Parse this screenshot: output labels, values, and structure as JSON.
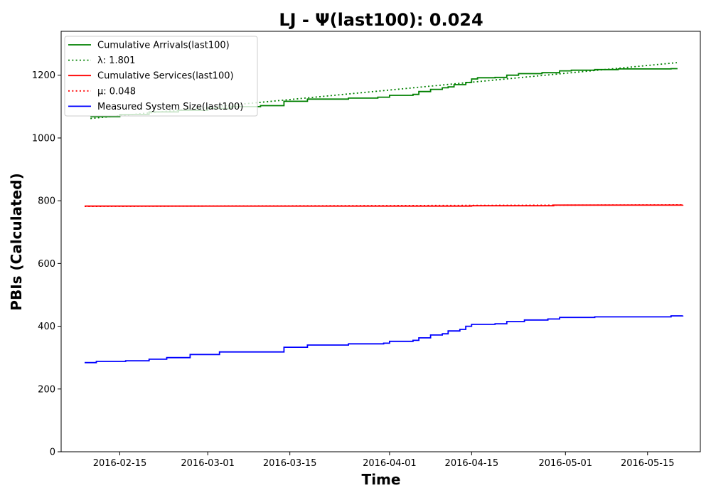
{
  "chart_data": {
    "type": "line",
    "title": "LJ -  Ψ(last100): 0.024",
    "xlabel": "Time",
    "ylabel": "PBIs (Calculated)",
    "xlim": [
      "2016-02-05",
      "2016-05-24"
    ],
    "ylim": [
      0,
      1340
    ],
    "xticks": [
      "2016-02-15",
      "2016-03-01",
      "2016-03-15",
      "2016-04-01",
      "2016-04-15",
      "2016-05-01",
      "2016-05-15"
    ],
    "yticks": [
      0,
      200,
      400,
      600,
      800,
      1000,
      1200
    ],
    "grid": false,
    "legend_position": "top-left",
    "series": [
      {
        "name": "Cumulative Arrivals(last100)",
        "color": "#008000",
        "style": "solid",
        "points": [
          [
            "2016-02-10",
            1068
          ],
          [
            "2016-02-15",
            1075
          ],
          [
            "2016-02-20",
            1083
          ],
          [
            "2016-02-25",
            1088
          ],
          [
            "2016-03-01",
            1094
          ],
          [
            "2016-03-05",
            1100
          ],
          [
            "2016-03-10",
            1103
          ],
          [
            "2016-03-14",
            1106
          ],
          [
            "2016-03-14",
            1117
          ],
          [
            "2016-03-18",
            1124
          ],
          [
            "2016-03-25",
            1127
          ],
          [
            "2016-03-30",
            1130
          ],
          [
            "2016-04-01",
            1136
          ],
          [
            "2016-04-05",
            1139
          ],
          [
            "2016-04-06",
            1148
          ],
          [
            "2016-04-08",
            1155
          ],
          [
            "2016-04-10",
            1160
          ],
          [
            "2016-04-11",
            1163
          ],
          [
            "2016-04-12",
            1170
          ],
          [
            "2016-04-14",
            1177
          ],
          [
            "2016-04-15",
            1188
          ],
          [
            "2016-04-16",
            1192
          ],
          [
            "2016-04-19",
            1193
          ],
          [
            "2016-04-21",
            1200
          ],
          [
            "2016-04-23",
            1205
          ],
          [
            "2016-04-27",
            1208
          ],
          [
            "2016-04-30",
            1214
          ],
          [
            "2016-05-02",
            1216
          ],
          [
            "2016-05-06",
            1218
          ],
          [
            "2016-05-10",
            1220
          ],
          [
            "2016-05-19",
            1221
          ],
          [
            "2016-05-20",
            1223
          ]
        ]
      },
      {
        "name": "λ: 1.801",
        "color": "#008000",
        "style": "dotted",
        "points": [
          [
            "2016-02-10",
            1062
          ],
          [
            "2016-05-20",
            1240
          ]
        ]
      },
      {
        "name": "Cumulative Services(last100)",
        "color": "#ff0000",
        "style": "solid",
        "points": [
          [
            "2016-02-09",
            783
          ],
          [
            "2016-03-15",
            783
          ],
          [
            "2016-04-15",
            784
          ],
          [
            "2016-04-29",
            786
          ],
          [
            "2016-05-21",
            787
          ]
        ]
      },
      {
        "name": "μ: 0.048",
        "color": "#ff0000",
        "style": "dotted",
        "points": [
          [
            "2016-02-09",
            782
          ],
          [
            "2016-05-21",
            787
          ]
        ]
      },
      {
        "name": "Measured System Size(last100)",
        "color": "#0000ff",
        "style": "solid",
        "points": [
          [
            "2016-02-09",
            284
          ],
          [
            "2016-02-11",
            288
          ],
          [
            "2016-02-16",
            290
          ],
          [
            "2016-02-20",
            295
          ],
          [
            "2016-02-23",
            300
          ],
          [
            "2016-02-27",
            310
          ],
          [
            "2016-03-03",
            318
          ],
          [
            "2016-03-14",
            322
          ],
          [
            "2016-03-14",
            333
          ],
          [
            "2016-03-18",
            340
          ],
          [
            "2016-03-25",
            344
          ],
          [
            "2016-03-31",
            346
          ],
          [
            "2016-04-01",
            352
          ],
          [
            "2016-04-05",
            355
          ],
          [
            "2016-04-06",
            363
          ],
          [
            "2016-04-08",
            372
          ],
          [
            "2016-04-10",
            376
          ],
          [
            "2016-04-11",
            385
          ],
          [
            "2016-04-13",
            390
          ],
          [
            "2016-04-14",
            400
          ],
          [
            "2016-04-15",
            406
          ],
          [
            "2016-04-19",
            408
          ],
          [
            "2016-04-21",
            415
          ],
          [
            "2016-04-24",
            420
          ],
          [
            "2016-04-28",
            423
          ],
          [
            "2016-04-30",
            428
          ],
          [
            "2016-05-06",
            430
          ],
          [
            "2016-05-19",
            433
          ],
          [
            "2016-05-21",
            434
          ]
        ]
      }
    ]
  }
}
